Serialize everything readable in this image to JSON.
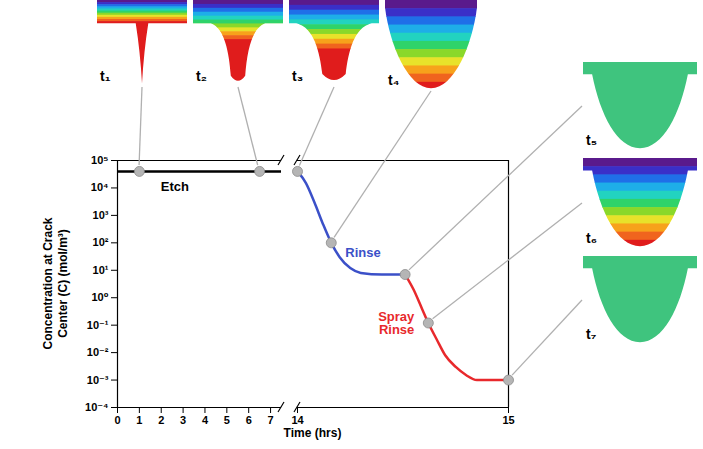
{
  "chart_data": {
    "type": "line",
    "log": "y",
    "xlabel": "Time (hrs)",
    "ylabel": "Concentration at Crack Center (C) (mol/m³)",
    "x_segments": [
      {
        "xlim": [
          0,
          7.5
        ],
        "xticks": [
          0,
          1,
          2,
          3,
          4,
          5,
          6,
          7
        ]
      },
      {
        "xlim": [
          14,
          15
        ],
        "xticks": [
          14,
          15
        ]
      }
    ],
    "ylim": [
      0.0001,
      100000
    ],
    "yticks": [
      {
        "value": 0.0001,
        "label": "10⁻⁴"
      },
      {
        "value": 0.001,
        "label": "10⁻³"
      },
      {
        "value": 0.01,
        "label": "10⁻²"
      },
      {
        "value": 0.1,
        "label": "10⁻¹"
      },
      {
        "value": 1,
        "label": "10⁰"
      },
      {
        "value": 10,
        "label": "10¹"
      },
      {
        "value": 100,
        "label": "10²"
      },
      {
        "value": 1000,
        "label": "10³"
      },
      {
        "value": 10000,
        "label": "10⁴"
      },
      {
        "value": 100000,
        "label": "10⁵"
      }
    ],
    "series": [
      {
        "name": "Etch",
        "color": "#000000",
        "x": [
          0,
          14
        ],
        "values": [
          40000,
          40000
        ]
      },
      {
        "name": "Rinse",
        "color": "#3b50c8",
        "x": [
          14,
          14.04,
          14.08,
          14.12,
          14.16,
          14.2,
          14.25,
          14.3,
          14.4,
          14.51
        ],
        "values": [
          40000,
          15000,
          3000,
          500,
          100,
          30,
          12,
          8,
          7,
          7
        ]
      },
      {
        "name": "Spray Rinse",
        "color": "#e8292c",
        "x": [
          14.51,
          14.55,
          14.59,
          14.62,
          14.66,
          14.7,
          14.75,
          14.8,
          14.85,
          15
        ],
        "values": [
          7,
          2,
          0.4,
          0.12,
          0.03,
          0.008,
          0.003,
          0.0015,
          0.001,
          0.001
        ]
      }
    ],
    "snapshots": {
      "color": "#b5b5b5",
      "marker": "circle",
      "points": [
        {
          "label": "t₁",
          "x": 1,
          "y": 40000
        },
        {
          "label": "t₂",
          "x": 6.5,
          "y": 40000
        },
        {
          "label": "t₃",
          "x": 14,
          "y": 40000
        },
        {
          "label": "t₄",
          "x": 14.16,
          "y": 100
        },
        {
          "label": "t₅",
          "x": 14.51,
          "y": 7
        },
        {
          "label": "t₆",
          "x": 14.62,
          "y": 0.12
        },
        {
          "label": "t₇",
          "x": 15,
          "y": 0.001
        }
      ]
    }
  }
}
